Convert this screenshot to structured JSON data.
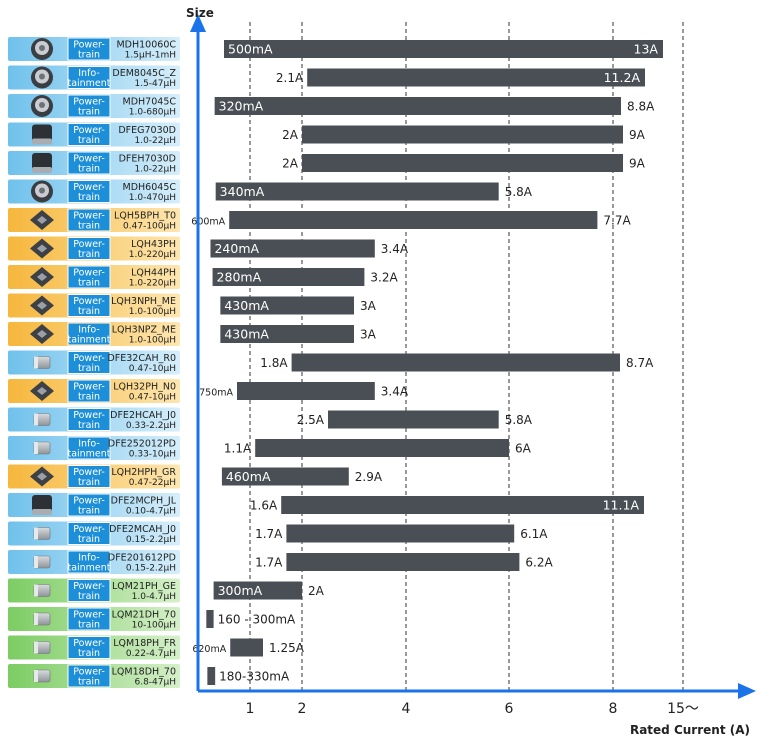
{
  "chart_data": {
    "type": "bar",
    "orientation": "horizontal-range",
    "ylabel": "Size",
    "xlabel": "Rated Current (A)",
    "x_ticks": [
      {
        "value": 1,
        "label": "1"
      },
      {
        "value": 2,
        "label": "2"
      },
      {
        "value": 4,
        "label": "4"
      },
      {
        "value": 6,
        "label": "6"
      },
      {
        "value": 8,
        "label": "8"
      },
      {
        "value": 15,
        "label": "15～"
      }
    ],
    "colors": {
      "bar": "#4a4f55",
      "axis": "#1a73e8",
      "text": "#222222",
      "tag_powertrain": "#1d8fd8",
      "tag_infotainment": "#1d8fd8",
      "band_blue": "#a7d8f2",
      "band_orange": "#f8c96a",
      "band_green": "#9fd98a"
    },
    "rows": [
      {
        "part": "MDH10060C",
        "inductance": "1.5μH-1mH",
        "tag": [
          "Power-",
          "train"
        ],
        "band": "blue",
        "x_min": 0.5,
        "x_max": 13,
        "min_label": "500mA",
        "min_inside": true,
        "max_label": "13A",
        "max_inside": true
      },
      {
        "part": "DEM8045C_Z",
        "inductance": "1.5-47μH",
        "tag": [
          "Info-",
          "tainment"
        ],
        "band": "blue",
        "x_min": 2.1,
        "x_max": 11.2,
        "min_label": "2.1A",
        "min_inside": false,
        "max_label": "11.2A",
        "max_inside": true
      },
      {
        "part": "MDH7045C",
        "inductance": "1.0-680μH",
        "tag": [
          "Power-",
          "train"
        ],
        "band": "blue",
        "x_min": 0.32,
        "x_max": 8.8,
        "min_label": "320mA",
        "min_inside": true,
        "max_label": "8.8A",
        "max_inside": false
      },
      {
        "part": "DFEG7030D",
        "inductance": "1.0-22μH",
        "tag": [
          "Power-",
          "train"
        ],
        "band": "blue",
        "x_min": 2,
        "x_max": 9,
        "min_label": "2A",
        "min_inside": false,
        "max_label": "9A",
        "max_inside": false
      },
      {
        "part": "DFEH7030D",
        "inductance": "1.0-22μH",
        "tag": [
          "Power-",
          "train"
        ],
        "band": "blue",
        "x_min": 2,
        "x_max": 9,
        "min_label": "2A",
        "min_inside": false,
        "max_label": "9A",
        "max_inside": false
      },
      {
        "part": "MDH6045C",
        "inductance": "1.0-470μH",
        "tag": [
          "Power-",
          "train"
        ],
        "band": "blue",
        "x_min": 0.34,
        "x_max": 5.8,
        "min_label": "340mA",
        "min_inside": true,
        "max_label": "5.8A",
        "max_inside": false
      },
      {
        "part": "LQH5BPH_T0",
        "inductance": "0.47-100μH",
        "tag": [
          "Power-",
          "train"
        ],
        "band": "orange",
        "x_min": 0.6,
        "x_max": 7.7,
        "min_label": "600mA",
        "min_inside": false,
        "min_small": true,
        "max_label": "7.7A",
        "max_inside": false
      },
      {
        "part": "LQH43PH",
        "inductance": "1.0-220μH",
        "tag": [
          "Power-",
          "train"
        ],
        "band": "orange",
        "x_min": 0.24,
        "x_max": 3.4,
        "min_label": "240mA",
        "min_inside": true,
        "max_label": "3.4A",
        "max_inside": false
      },
      {
        "part": "LQH44PH",
        "inductance": "1.0-220μH",
        "tag": [
          "Power-",
          "train"
        ],
        "band": "orange",
        "x_min": 0.28,
        "x_max": 3.2,
        "min_label": "280mA",
        "min_inside": true,
        "max_label": "3.2A",
        "max_inside": false
      },
      {
        "part": "LQH3NPH_ME",
        "inductance": "1.0-100μH",
        "tag": [
          "Power-",
          "train"
        ],
        "band": "orange",
        "x_min": 0.43,
        "x_max": 3,
        "min_label": "430mA",
        "min_inside": true,
        "max_label": "3A",
        "max_inside": false
      },
      {
        "part": "LQH3NPZ_ME",
        "inductance": "1.0-100μH",
        "tag": [
          "Info-",
          "tainment"
        ],
        "band": "orange",
        "x_min": 0.43,
        "x_max": 3,
        "min_label": "430mA",
        "min_inside": true,
        "max_label": "3A",
        "max_inside": false
      },
      {
        "part": "DFE32CAH_R0",
        "inductance": "0.47-10μH",
        "tag": [
          "Power-",
          "train"
        ],
        "band": "blue",
        "x_min": 1.8,
        "x_max": 8.7,
        "min_label": "1.8A",
        "min_inside": false,
        "max_label": "8.7A",
        "max_inside": false
      },
      {
        "part": "LQH32PH_N0",
        "inductance": "0.47-10μH",
        "tag": [
          "Power-",
          "train"
        ],
        "band": "orange",
        "x_min": 0.75,
        "x_max": 3.4,
        "min_label": "750mA",
        "min_inside": false,
        "min_small": true,
        "max_label": "3.4A",
        "max_inside": false
      },
      {
        "part": "DFE2HCAH_J0",
        "inductance": "0.33-2.2μH",
        "tag": [
          "Power-",
          "train"
        ],
        "band": "blue",
        "x_min": 2.5,
        "x_max": 5.8,
        "min_label": "2.5A",
        "min_inside": false,
        "max_label": "5.8A",
        "max_inside": false
      },
      {
        "part": "DFE252012PD",
        "inductance": "0.33-10μH",
        "tag": [
          "Info-",
          "tainment"
        ],
        "band": "blue",
        "x_min": 1.1,
        "x_max": 6,
        "min_label": "1.1A",
        "min_inside": false,
        "max_label": "6A",
        "max_inside": false
      },
      {
        "part": "LQH2HPH_GR",
        "inductance": "0.47-22μH",
        "tag": [
          "Power-",
          "train"
        ],
        "band": "orange",
        "x_min": 0.46,
        "x_max": 2.9,
        "min_label": "460mA",
        "min_inside": true,
        "max_label": "2.9A",
        "max_inside": false
      },
      {
        "part": "DFE2MCPH_JL",
        "inductance": "0.10-4.7μH",
        "tag": [
          "Power-",
          "train"
        ],
        "band": "blue",
        "x_min": 1.6,
        "x_max": 11.1,
        "min_label": "1.6A",
        "min_inside": false,
        "max_label": "11.1A",
        "max_inside": true
      },
      {
        "part": "DFE2MCAH_J0",
        "inductance": "0.15-2.2μH",
        "tag": [
          "Power-",
          "train"
        ],
        "band": "blue",
        "x_min": 1.7,
        "x_max": 6.1,
        "min_label": "1.7A",
        "min_inside": false,
        "max_label": "6.1A",
        "max_inside": false
      },
      {
        "part": "DFE201612PD",
        "inductance": "0.15-2.2μH",
        "tag": [
          "Info-",
          "tainment"
        ],
        "band": "blue",
        "x_min": 1.7,
        "x_max": 6.2,
        "min_label": "1.7A",
        "min_inside": false,
        "max_label": "6.2A",
        "max_inside": false
      },
      {
        "part": "LQM21PH_GE",
        "inductance": "1.0-4.7μH",
        "tag": [
          "Power-",
          "train"
        ],
        "band": "green",
        "x_min": 0.3,
        "x_max": 2,
        "min_label": "300mA",
        "min_inside": true,
        "max_label": "2A",
        "max_inside": false
      },
      {
        "part": "LQM21DH_70",
        "inductance": "10-100μH",
        "tag": [
          "Power-",
          "train"
        ],
        "band": "green",
        "x_min": 0.16,
        "x_max": 0.3,
        "range_label": "160 - 300mA"
      },
      {
        "part": "LQM18PH_FR",
        "inductance": "0.22-4.7μH",
        "tag": [
          "Power-",
          "train"
        ],
        "band": "green",
        "x_min": 0.62,
        "x_max": 1.25,
        "min_label": "620mA",
        "min_inside": false,
        "min_small": true,
        "max_label": "1.25A",
        "max_inside": false
      },
      {
        "part": "LQM18DH_70",
        "inductance": "6.8-47μH",
        "tag": [
          "Power-",
          "train"
        ],
        "band": "green",
        "x_min": 0.18,
        "x_max": 0.33,
        "range_label": "180-330mA"
      }
    ]
  }
}
